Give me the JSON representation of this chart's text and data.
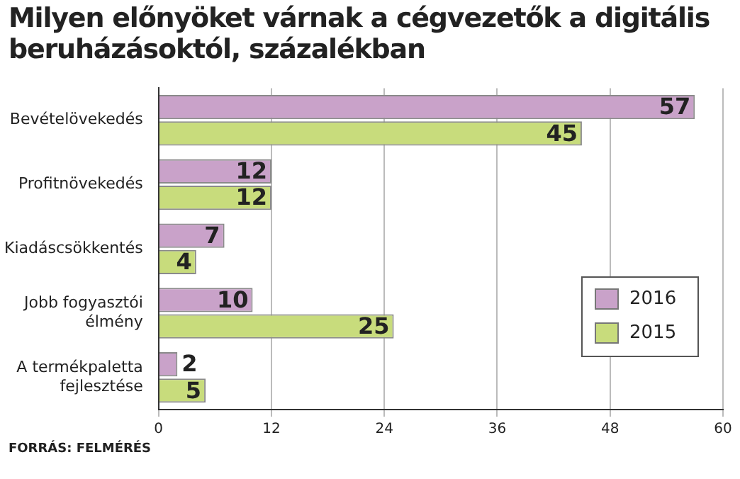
{
  "chart_data": {
    "type": "bar",
    "orientation": "horizontal",
    "title": "Milyen előnyöket várnak a cégvezetők a digitális beruházásoktól, százalékban",
    "categories": [
      "Bevételövekedés",
      "Profitnövekedés",
      "Kiadáscsökkentés",
      "Jobb fogyasztói élmény",
      "A termékpaletta fejlesztése"
    ],
    "series": [
      {
        "name": "2016",
        "color": "#c9a2c9",
        "values": [
          57,
          12,
          7,
          10,
          2
        ]
      },
      {
        "name": "2015",
        "color": "#c8dc7c",
        "values": [
          45,
          12,
          4,
          25,
          5
        ]
      }
    ],
    "xlim": [
      0,
      60
    ],
    "xticks": [
      0,
      12,
      24,
      36,
      48,
      60
    ],
    "grid": "x",
    "legend": "right",
    "data_labels": true,
    "annotations": [
      "FORRÁS: FELMÉRÉS"
    ]
  }
}
